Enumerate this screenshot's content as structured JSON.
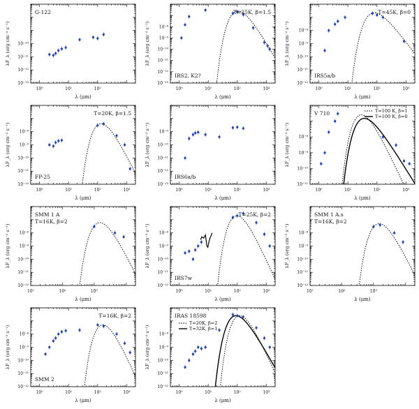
{
  "chart_data": [
    {
      "type": "scatter",
      "x_label": "λ (μm)",
      "y_label": "λF_λ (erg cm⁻² s⁻¹)",
      "xlog": true,
      "ylog": true,
      "xlim": [
        0.5,
        2000
      ],
      "ylim": [
        1e-14,
        1e-08
      ],
      "x_ticks": [
        "10⁰",
        "10¹",
        "10²"
      ],
      "y_ticks": [
        "10⁻¹³",
        "10⁻¹²",
        "10⁻¹¹",
        "10⁻¹⁰"
      ],
      "labels": [
        {
          "text": "G-122",
          "anchor": "top-left"
        }
      ],
      "points": [
        [
          2.2,
          1.5e-12
        ],
        [
          3.0,
          1.3e-12
        ],
        [
          3.6,
          1.8e-12
        ],
        [
          4.5,
          3e-12
        ],
        [
          5.8,
          4e-12
        ],
        [
          8,
          5e-12
        ],
        [
          24,
          2e-11
        ],
        [
          70,
          3e-11
        ],
        [
          100,
          2.5e-11
        ],
        [
          160,
          5e-11
        ]
      ],
      "curves": []
    },
    {
      "type": "scatter",
      "x_label": "λ (μm)",
      "y_label": "λF_λ (erg cm⁻² s⁻¹)",
      "xlog": true,
      "ylog": true,
      "xlim": [
        0.5,
        2000
      ],
      "ylim": [
        1e-14,
        1e-07
      ],
      "x_ticks": [
        "10⁰",
        "10¹",
        "10²",
        "10³"
      ],
      "y_ticks": [
        "10⁻¹³",
        "10⁻¹²",
        "10⁻¹¹",
        "10⁻¹⁰",
        "10⁻⁹",
        "10⁻⁸"
      ],
      "labels": [
        {
          "text": "T=25K, β=1.5",
          "anchor": "top-right"
        },
        {
          "text": "IRS2, K2?",
          "anchor": "bottom-left"
        }
      ],
      "points": [
        [
          1.2,
          1e-10
        ],
        [
          1.6,
          1.5e-09
        ],
        [
          2.2,
          8e-09
        ],
        [
          8,
          3e-08
        ],
        [
          70,
          1.5e-08
        ],
        [
          100,
          2e-08
        ],
        [
          160,
          1.2e-08
        ],
        [
          350,
          8e-10
        ],
        [
          850,
          4e-11
        ],
        [
          1100,
          2e-11
        ],
        [
          1300,
          1e-11
        ]
      ],
      "curves": [
        {
          "T": 25,
          "beta": 1.5,
          "peak": 2.5e-08,
          "style": "dotted"
        }
      ]
    },
    {
      "type": "scatter",
      "x_label": "λ (μm)",
      "y_label": "λF_λ (erg cm⁻² s⁻¹)",
      "xlog": true,
      "ylog": true,
      "xlim": [
        0.5,
        2000
      ],
      "ylim": [
        1e-13,
        1e-07
      ],
      "x_ticks": [
        "10⁰",
        "10¹",
        "10²",
        "10³"
      ],
      "y_ticks": [
        "10⁻¹²",
        "10⁻¹¹",
        "10⁻¹⁰",
        "10⁻⁹",
        "10⁻⁸"
      ],
      "labels": [
        {
          "text": "T=45K, β=0",
          "anchor": "top-right"
        },
        {
          "text": "IRS5a/b",
          "anchor": "bottom-left"
        }
      ],
      "points": [
        [
          1.6,
          3e-11
        ],
        [
          2.2,
          1e-09
        ],
        [
          3.6,
          3e-09
        ],
        [
          4.5,
          5e-09
        ],
        [
          8,
          1e-08
        ],
        [
          70,
          2e-08
        ],
        [
          100,
          1.5e-08
        ],
        [
          160,
          1e-08
        ],
        [
          850,
          1.5e-10
        ]
      ],
      "curves": [
        {
          "T": 45,
          "beta": 0,
          "peak": 2.2e-08,
          "style": "dotted"
        }
      ]
    },
    {
      "type": "scatter",
      "x_label": "λ (μm)",
      "y_label": "λF_λ (erg cm⁻² s⁻¹)",
      "xlog": true,
      "ylog": true,
      "xlim": [
        0.5,
        2000
      ],
      "ylim": [
        1e-13,
        1e-07
      ],
      "x_ticks": [
        "10⁰",
        "10¹",
        "10²",
        "10³"
      ],
      "y_ticks": [
        "10⁻¹²",
        "10⁻¹¹",
        "10⁻¹⁰",
        "10⁻⁹",
        "10⁻⁸"
      ],
      "labels": [
        {
          "text": "T=20K, β=1.5",
          "anchor": "top-right"
        },
        {
          "text": "FP-25",
          "anchor": "bottom-left"
        }
      ],
      "points": [
        [
          2.2,
          1e-10
        ],
        [
          3.0,
          8e-11
        ],
        [
          3.6,
          1.5e-10
        ],
        [
          4.5,
          2e-10
        ],
        [
          5.8,
          2.2e-10
        ],
        [
          100,
          3e-09
        ],
        [
          160,
          4e-09
        ],
        [
          450,
          5e-10
        ],
        [
          850,
          1e-10
        ],
        [
          1300,
          1.5e-12
        ]
      ],
      "curves": [
        {
          "T": 20,
          "beta": 1.5,
          "peak": 4e-09,
          "style": "dotted"
        }
      ]
    },
    {
      "type": "scatter",
      "x_label": "λ (μm)",
      "y_label": "λF_λ (erg cm⁻² s⁻¹)",
      "xlog": true,
      "ylog": true,
      "xlim": [
        0.5,
        2000
      ],
      "ylim": [
        1e-14,
        1e-08
      ],
      "x_ticks": [
        "10⁰",
        "10¹",
        "10²",
        "10³"
      ],
      "y_ticks": [
        "10⁻¹³",
        "10⁻¹²",
        "10⁻¹¹",
        "10⁻¹⁰",
        "10⁻⁹"
      ],
      "labels": [
        {
          "text": "IRS6a/b",
          "anchor": "bottom-left"
        }
      ],
      "points": [
        [
          1.6,
          1e-12
        ],
        [
          2.2,
          3e-11
        ],
        [
          3.0,
          6e-11
        ],
        [
          3.6,
          8e-11
        ],
        [
          4.5,
          9e-11
        ],
        [
          8,
          6e-11
        ],
        [
          24,
          4e-11
        ],
        [
          70,
          2e-10
        ],
        [
          100,
          2.2e-10
        ],
        [
          160,
          1.8e-10
        ]
      ],
      "curves": []
    },
    {
      "type": "scatter",
      "x_label": "λ (μm)",
      "y_label": "λF_λ (erg cm⁻² s⁻¹)",
      "xlog": true,
      "ylog": true,
      "xlim": [
        0.5,
        2000
      ],
      "ylim": [
        1e-12,
        1e-07
      ],
      "x_ticks": [
        "10⁰",
        "10¹",
        "10²",
        "10³"
      ],
      "y_ticks": [
        "10⁻¹¹",
        "10⁻¹⁰",
        "10⁻⁹",
        "10⁻⁸"
      ],
      "labels": [
        {
          "text": "V 710",
          "anchor": "top-left"
        }
      ],
      "legend": [
        {
          "text": "T=100 K, β=1",
          "style": "dotted"
        },
        {
          "text": "T=100 K, β=0",
          "style": "solid"
        }
      ],
      "points": [
        [
          1.2,
          2e-11
        ],
        [
          1.6,
          1e-10
        ],
        [
          2.2,
          2e-09
        ],
        [
          3.6,
          1e-08
        ],
        [
          4.5,
          3e-08
        ],
        [
          160,
          1e-09
        ],
        [
          450,
          3e-10
        ],
        [
          850,
          3e-11
        ],
        [
          1300,
          2e-11
        ]
      ],
      "curves": [
        {
          "T": 100,
          "beta": 1,
          "peak": 2.5e-08,
          "style": "dotted"
        },
        {
          "T": 100,
          "beta": 0,
          "peak": 1.5e-08,
          "style": "solid"
        }
      ]
    },
    {
      "type": "scatter",
      "x_label": "λ (μm)",
      "y_label": "λF_λ (erg cm⁻² s⁻¹)",
      "xlog": true,
      "ylog": true,
      "xlim": [
        1,
        2000
      ],
      "ylim": [
        1e-13,
        1e-07
      ],
      "x_ticks": [
        "10¹",
        "10²",
        "10³"
      ],
      "y_ticks": [
        "10⁻¹²",
        "10⁻¹¹",
        "10⁻¹⁰",
        "10⁻⁹",
        "10⁻⁸"
      ],
      "labels": [
        {
          "text": "SMM 1 A",
          "anchor": "top-left"
        },
        {
          "text": "T=16K, β=2",
          "anchor": "top-left"
        }
      ],
      "points": [
        [
          100,
          3e-09
        ],
        [
          450,
          1e-09
        ],
        [
          850,
          5e-10
        ]
      ],
      "curves": [
        {
          "T": 16,
          "beta": 2,
          "peak": 6e-09,
          "style": "dotted"
        }
      ]
    },
    {
      "type": "scatter",
      "x_label": "λ (μm)",
      "y_label": "λF_λ (erg cm⁻² s⁻¹)",
      "xlog": true,
      "ylog": true,
      "xlim": [
        0.5,
        2000
      ],
      "ylim": [
        1e-13,
        1e-07
      ],
      "x_ticks": [
        "10⁰",
        "10¹",
        "10²",
        "10³"
      ],
      "y_ticks": [
        "10⁻¹²",
        "10⁻¹¹",
        "10⁻¹⁰",
        "10⁻⁹",
        "10⁻⁸"
      ],
      "labels": [
        {
          "text": "T=25K, β=2",
          "anchor": "top-right"
        },
        {
          "text": "IRS7w",
          "anchor": "bottom-left"
        }
      ],
      "points": [
        [
          1.6,
          3e-11
        ],
        [
          2.2,
          4e-11
        ],
        [
          3.0,
          1e-11
        ],
        [
          3.6,
          5e-11
        ],
        [
          4.5,
          1e-10
        ],
        [
          5.8,
          2e-10
        ],
        [
          70,
          1.5e-08
        ],
        [
          100,
          2e-08
        ],
        [
          160,
          3e-08
        ],
        [
          450,
          6e-09
        ],
        [
          850,
          8e-10
        ],
        [
          1300,
          1e-10
        ]
      ],
      "spectrum": [
        [
          5.5,
          3e-10
        ],
        [
          6,
          5e-10
        ],
        [
          7,
          4e-10
        ],
        [
          8,
          7e-10
        ],
        [
          9,
          1e-10
        ],
        [
          9.7,
          8e-11
        ],
        [
          10.5,
          2e-10
        ],
        [
          11.5,
          4e-10
        ],
        [
          12.5,
          6e-10
        ],
        [
          13.5,
          1e-09
        ]
      ],
      "curves": [
        {
          "T": 25,
          "beta": 2,
          "peak": 2e-08,
          "style": "dotted"
        }
      ]
    },
    {
      "type": "scatter",
      "x_label": "λ (μm)",
      "y_label": "λF_λ (erg cm⁻² s⁻¹)",
      "xlog": true,
      "ylog": true,
      "xlim": [
        1,
        2000
      ],
      "ylim": [
        1e-13,
        1e-07
      ],
      "x_ticks": [
        "10¹",
        "10²",
        "10³"
      ],
      "y_ticks": [
        "10⁻¹²",
        "10⁻¹¹",
        "10⁻¹⁰",
        "10⁻⁹",
        "10⁻⁸"
      ],
      "labels": [
        {
          "text": "SMM 1 A.s",
          "anchor": "top-left"
        },
        {
          "text": "T=16K, β=2",
          "anchor": "top-left"
        }
      ],
      "points": [
        [
          100,
          3e-09
        ],
        [
          160,
          4e-09
        ],
        [
          450,
          1e-09
        ],
        [
          850,
          2e-10
        ]
      ],
      "curves": [
        {
          "T": 16,
          "beta": 2,
          "peak": 5e-09,
          "style": "dotted"
        }
      ]
    },
    {
      "type": "scatter",
      "x_label": "λ (μm)",
      "y_label": "λF_λ (erg cm⁻² s⁻¹)",
      "xlog": true,
      "ylog": true,
      "xlim": [
        0.5,
        2000
      ],
      "ylim": [
        1e-13,
        1e-07
      ],
      "x_ticks": [
        "10⁰",
        "10¹",
        "10²",
        "10³"
      ],
      "y_ticks": [
        "10⁻¹²",
        "10⁻¹¹",
        "10⁻¹⁰",
        "10⁻⁹",
        "10⁻⁸"
      ],
      "labels": [
        {
          "text": "T=16K, β=2",
          "anchor": "top-right"
        },
        {
          "text": "SMM 2",
          "anchor": "bottom-left"
        }
      ],
      "points": [
        [
          1.6,
          3e-11
        ],
        [
          2.2,
          1e-10
        ],
        [
          3.0,
          3e-10
        ],
        [
          3.6,
          5e-10
        ],
        [
          4.5,
          1e-09
        ],
        [
          5.8,
          1.5e-09
        ],
        [
          8,
          1.8e-09
        ],
        [
          24,
          2e-09
        ],
        [
          100,
          5e-09
        ],
        [
          160,
          4e-09
        ],
        [
          450,
          1e-09
        ],
        [
          850,
          2e-10
        ],
        [
          1300,
          4e-11
        ]
      ],
      "curves": [
        {
          "T": 16,
          "beta": 2,
          "peak": 5e-09,
          "style": "dotted"
        }
      ]
    },
    {
      "type": "scatter",
      "x_label": "λ (μm)",
      "y_label": "λF_λ (erg cm⁻² s⁻¹)",
      "xlog": true,
      "ylog": true,
      "xlim": [
        0.5,
        2000
      ],
      "ylim": [
        1e-13,
        1e-07
      ],
      "x_ticks": [
        "10⁰",
        "10¹",
        "10²",
        "10³"
      ],
      "y_ticks": [
        "10⁻¹²",
        "10⁻¹¹",
        "10⁻¹⁰",
        "10⁻⁹",
        "10⁻⁸"
      ],
      "labels": [
        {
          "text": "IRAS 18598",
          "anchor": "top-left"
        }
      ],
      "legend": [
        {
          "text": "T=20K, β=2",
          "style": "dotted"
        },
        {
          "text": "T=32K, β=1",
          "style": "solid"
        }
      ],
      "points": [
        [
          1.6,
          3e-12
        ],
        [
          2.2,
          1e-11
        ],
        [
          3.0,
          3e-11
        ],
        [
          3.6,
          5e-11
        ],
        [
          4.5,
          1e-10
        ],
        [
          5.8,
          8e-11
        ],
        [
          8,
          1e-10
        ],
        [
          24,
          2e-09
        ],
        [
          70,
          3e-08
        ],
        [
          100,
          2.5e-08
        ],
        [
          160,
          2e-08
        ],
        [
          450,
          3e-09
        ],
        [
          850,
          5e-10
        ],
        [
          1300,
          1e-10
        ]
      ],
      "curves": [
        {
          "T": 20,
          "beta": 2,
          "peak": 2.5e-08,
          "style": "dotted"
        },
        {
          "T": 32,
          "beta": 1,
          "peak": 2.5e-08,
          "style": "solid"
        }
      ]
    }
  ]
}
